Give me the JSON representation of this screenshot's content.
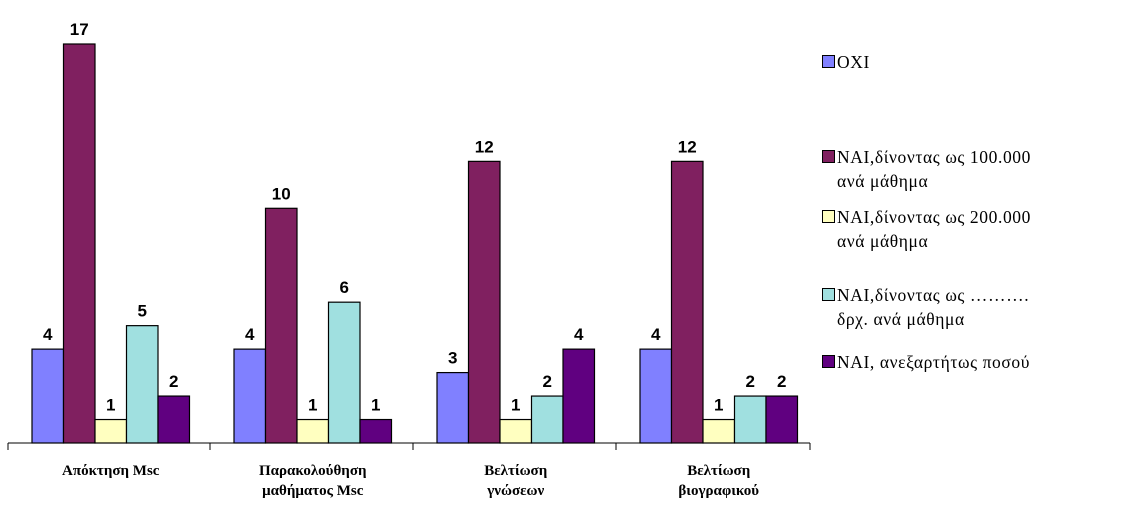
{
  "chart_data": {
    "type": "bar",
    "categories": [
      "Απόκτηση Msc",
      "Παρακολούθηση\nμαθήματος Msc",
      "Βελτίωση\nγνώσεων",
      "Βελτίωση\nβιογραφικού"
    ],
    "series": [
      {
        "name": "ΟΧΙ",
        "color": "#8080ff",
        "values": [
          4,
          4,
          3,
          4
        ]
      },
      {
        "name": "ΝΑΙ,δίνοντας ως 100.000\nανά μάθημα",
        "color": "#802060",
        "values": [
          17,
          10,
          12,
          12
        ]
      },
      {
        "name": "ΝΑΙ,δίνοντας ως 200.000\nανά μάθημα",
        "color": "#ffffc0",
        "values": [
          1,
          1,
          1,
          1
        ]
      },
      {
        "name": "ΝΑΙ,δίνοντας ως ……….\nδρχ. ανά μάθημα",
        "color": "#a0e0e0",
        "values": [
          5,
          6,
          2,
          2
        ]
      },
      {
        "name": "ΝΑΙ, ανεξαρτήτως ποσού",
        "color": "#600080",
        "values": [
          2,
          1,
          4,
          2
        ]
      }
    ],
    "ylim": [
      0,
      17
    ],
    "data_labels": true,
    "legend_position": "right",
    "grid": false
  }
}
